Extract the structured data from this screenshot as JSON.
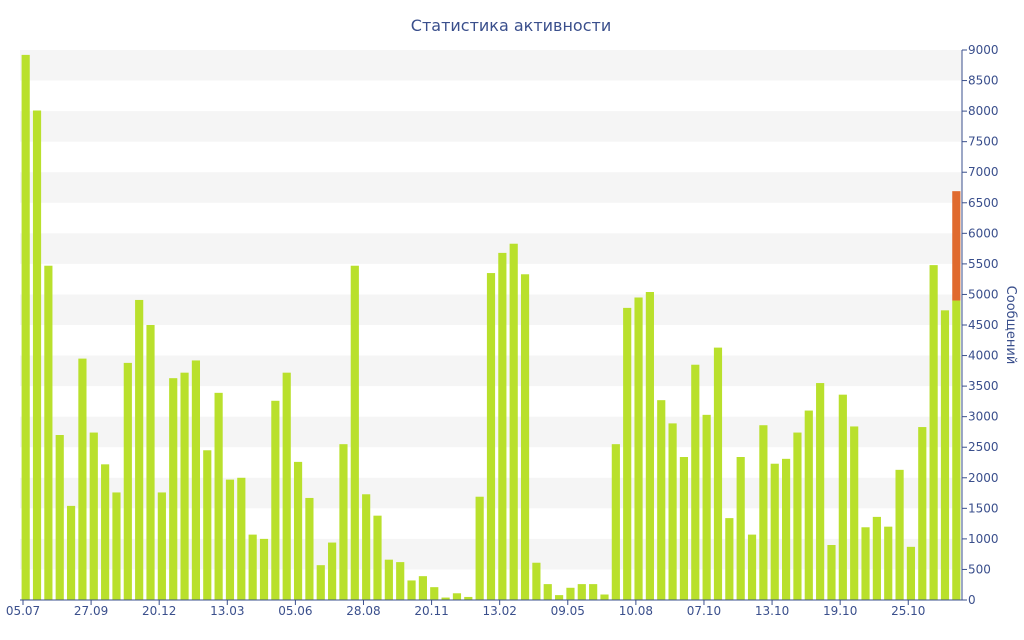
{
  "chart_data": {
    "type": "bar",
    "title": "Статистика активности",
    "ylabel": "Сообщений",
    "xlabel": "",
    "ylim": [
      0,
      9000
    ],
    "y_ticks": [
      0,
      500,
      1000,
      1500,
      2000,
      2500,
      3000,
      3500,
      4000,
      4500,
      5000,
      5500,
      6000,
      6500,
      7000,
      7500,
      8000,
      8500,
      9000
    ],
    "x_tick_labels": [
      {
        "index": 0,
        "label": "05.07"
      },
      {
        "index": 6,
        "label": "27.09"
      },
      {
        "index": 12,
        "label": "20.12"
      },
      {
        "index": 18,
        "label": "13.03"
      },
      {
        "index": 24,
        "label": "05.06"
      },
      {
        "index": 30,
        "label": "28.08"
      },
      {
        "index": 36,
        "label": "20.11"
      },
      {
        "index": 42,
        "label": "13.02"
      },
      {
        "index": 48,
        "label": "09.05"
      },
      {
        "index": 54,
        "label": "10.08"
      },
      {
        "index": 60,
        "label": "07.10"
      },
      {
        "index": 66,
        "label": "13.10"
      },
      {
        "index": 72,
        "label": "19.10"
      },
      {
        "index": 78,
        "label": "25.10"
      }
    ],
    "grid": "alternating horizontal bands",
    "legend": "none",
    "y_axis_position": "right",
    "series": [
      {
        "color": "#b9e02c",
        "values": [
          8920,
          8010,
          5470,
          2700,
          1540,
          3950,
          2740,
          2220,
          1760,
          3880,
          4910,
          4500,
          1760,
          3630,
          3720,
          3920,
          2450,
          3390,
          1970,
          2000,
          1070,
          1000,
          3260,
          3720,
          2260,
          1670,
          570,
          940,
          2550,
          5470,
          1730,
          1380,
          660,
          620,
          320,
          390,
          210,
          40,
          110,
          50,
          1690,
          5350,
          5680,
          5830,
          5330,
          610,
          260,
          80,
          200,
          260,
          260,
          90,
          2550,
          4780,
          4950,
          5040,
          3270,
          2890,
          2340,
          3850,
          3030,
          4130,
          1340,
          2340,
          1070,
          2860,
          2230,
          2310,
          2740,
          3100,
          3550,
          900,
          3360,
          2840,
          1190,
          1360,
          1200,
          2130,
          870,
          2830,
          5480,
          4740,
          4900
        ]
      },
      {
        "color": "#e06a2e",
        "values": [
          0,
          0,
          0,
          0,
          0,
          0,
          0,
          0,
          0,
          0,
          0,
          0,
          0,
          0,
          0,
          0,
          0,
          0,
          0,
          0,
          0,
          0,
          0,
          0,
          0,
          0,
          0,
          0,
          0,
          0,
          0,
          0,
          0,
          0,
          0,
          0,
          0,
          0,
          0,
          0,
          0,
          0,
          0,
          0,
          0,
          0,
          0,
          0,
          0,
          0,
          0,
          0,
          0,
          0,
          0,
          0,
          0,
          0,
          0,
          0,
          0,
          0,
          0,
          0,
          0,
          0,
          0,
          0,
          0,
          0,
          0,
          0,
          0,
          0,
          0,
          0,
          0,
          0,
          0,
          0,
          0,
          0,
          1790
        ]
      }
    ],
    "stacked": true,
    "colors": {
      "text": "#3a4f8c",
      "band": "#f5f5f5",
      "axis": "#3a4f8c"
    }
  }
}
